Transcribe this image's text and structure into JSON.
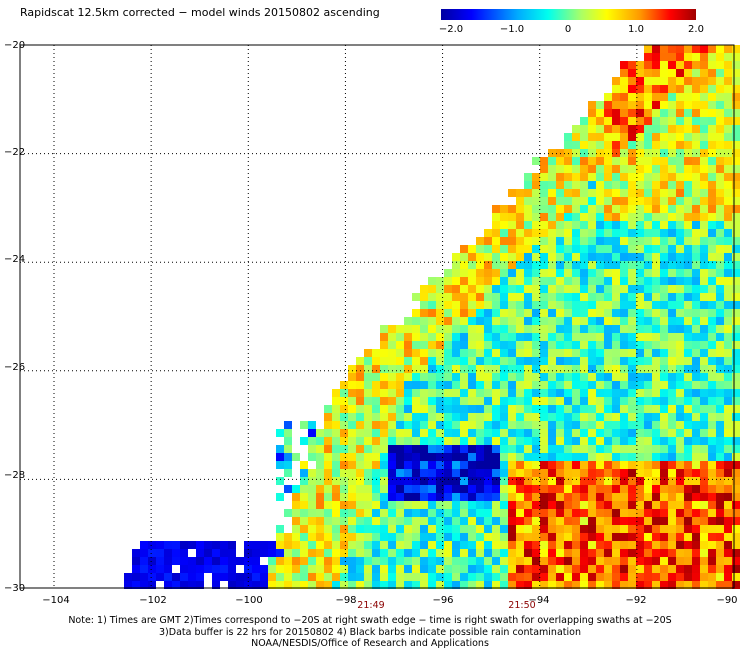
{
  "title": "Rapidscat 12.5km corrected − model winds 20150802 ascending",
  "colorbar": {
    "ticks": [
      "−2.0",
      "−1.0",
      "0",
      "1.0",
      "2.0"
    ],
    "colors": [
      "#0000a0",
      "#0000ff",
      "#00aaff",
      "#00ffee",
      "#aaff66",
      "#ffff00",
      "#ff9900",
      "#ff0000",
      "#a00000"
    ]
  },
  "axes": {
    "lon_ticks": [
      "−104",
      "−102",
      "−100",
      "−98",
      "−96",
      "−94",
      "−92",
      "−90"
    ],
    "lat_ticks": [
      "−20",
      "−22",
      "−24",
      "−26",
      "−28",
      "−30"
    ],
    "lon_range": [
      -105,
      -90
    ],
    "lat_range": [
      -30,
      -20
    ]
  },
  "swath_times": [
    {
      "label": "21:49",
      "lon": -97.5
    },
    {
      "label": "21:50",
      "lon": -94.7
    }
  ],
  "notes": [
    "Note: 1) Times are GMT 2)Times correspond to −20S at right swath edge − time is right swath for overlapping swaths at −20S",
    "3)Data buffer is 22 hrs for 20150802 4) Black barbs indicate possible rain contamination",
    "NOAA/NESDIS/Office of Research and Applications"
  ],
  "colors": {
    "time_label": "#8b0000",
    "grid": "#000000"
  }
}
